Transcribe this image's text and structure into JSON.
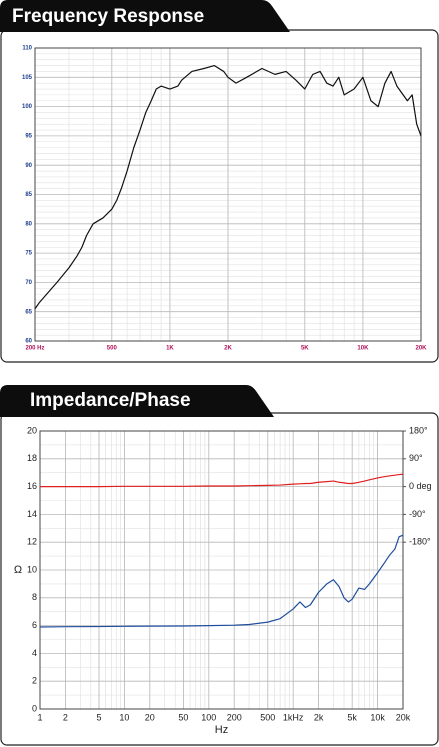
{
  "chart_data": [
    {
      "type": "line",
      "title": "Frequency Response",
      "log_x": true,
      "grid": true,
      "xlim": [
        200,
        20000
      ],
      "xticks": [
        {
          "value": 200,
          "label": "200 Hz"
        },
        500,
        {
          "value": 1000,
          "label": "1K"
        },
        {
          "value": 2000,
          "label": "2K"
        },
        {
          "value": 5000,
          "label": "5K"
        },
        {
          "value": 10000,
          "label": "10K"
        },
        {
          "value": 20000,
          "label": "20K"
        }
      ],
      "ylim": [
        60,
        110
      ],
      "yticks": [
        110,
        105,
        100,
        95,
        90,
        85,
        80,
        75,
        70,
        65,
        60
      ],
      "x": [
        200,
        210,
        230,
        260,
        300,
        330,
        350,
        370,
        400,
        450,
        500,
        530,
        560,
        600,
        650,
        700,
        750,
        800,
        850,
        900,
        1000,
        1100,
        1150,
        1300,
        1500,
        1700,
        1900,
        2000,
        2200,
        2500,
        3000,
        3500,
        4000,
        4500,
        5000,
        5500,
        6000,
        6500,
        7000,
        7500,
        8000,
        9000,
        10000,
        11000,
        12000,
        13000,
        14000,
        15000,
        17000,
        18000,
        19000,
        20000
      ],
      "series": [
        {
          "color": "#111111",
          "values": [
            65.5,
            66.5,
            68,
            70,
            72.5,
            74.5,
            76,
            78,
            80,
            81,
            82.5,
            84,
            86,
            89,
            93,
            96,
            99,
            101,
            103,
            103.5,
            103,
            103.5,
            104.5,
            106,
            106.5,
            107,
            106,
            105,
            104,
            105,
            106.5,
            105.5,
            106,
            104.5,
            103,
            105.5,
            106,
            104,
            103.5,
            105,
            102,
            103,
            105,
            101,
            100,
            104,
            106,
            103.5,
            101,
            102,
            97,
            95
          ]
        }
      ]
    },
    {
      "type": "line",
      "title": "Impedance/Phase",
      "log_x": true,
      "grid": true,
      "x_label": "Hz",
      "y_label": "Ω",
      "xlim": [
        1,
        20000
      ],
      "xticks": [
        1,
        2,
        5,
        10,
        20,
        50,
        100,
        200,
        500,
        {
          "value": 1000,
          "label": "1kHz"
        },
        {
          "value": 2000,
          "label": "2k"
        },
        {
          "value": 5000,
          "label": "5k"
        },
        {
          "value": 10000,
          "label": "10k"
        },
        {
          "value": 20000,
          "label": "20k"
        }
      ],
      "ylim": [
        0,
        20
      ],
      "yticks": [
        0,
        2,
        4,
        6,
        8,
        10,
        12,
        14,
        16,
        18,
        20
      ],
      "y2lim": [
        -720,
        180
      ],
      "y2ticks": [
        {
          "value": 180,
          "label": "180°"
        },
        {
          "value": 90,
          "label": "90°"
        },
        {
          "value": 0,
          "label": "0 deg"
        },
        {
          "value": -90,
          "label": "-90°"
        },
        {
          "value": -180,
          "label": "-180°"
        }
      ],
      "x": [
        1,
        2,
        5,
        10,
        20,
        50,
        100,
        200,
        300,
        500,
        700,
        1000,
        1200,
        1400,
        1600,
        2000,
        2500,
        3000,
        3500,
        4000,
        4500,
        5000,
        6000,
        7000,
        8000,
        10000,
        12000,
        14000,
        16000,
        18000,
        20000
      ],
      "series": [
        {
          "color": "#1f4e9c",
          "values": [
            5.9,
            5.92,
            5.93,
            5.95,
            5.96,
            5.97,
            6.0,
            6.03,
            6.08,
            6.25,
            6.5,
            7.2,
            7.7,
            7.3,
            7.5,
            8.4,
            9.0,
            9.3,
            8.8,
            8.0,
            7.7,
            7.9,
            8.7,
            8.6,
            9.0,
            9.8,
            10.5,
            11.1,
            11.5,
            12.4,
            12.5
          ]
        },
        {
          "color": "#e02020",
          "axis": "y2",
          "values": [
            0,
            0,
            0,
            1,
            1,
            1,
            2,
            2,
            3,
            4,
            5,
            8,
            9,
            10,
            10,
            14,
            16,
            18,
            14,
            12,
            10,
            10,
            14,
            18,
            22,
            28,
            32,
            35,
            37,
            39,
            40
          ]
        }
      ]
    }
  ]
}
